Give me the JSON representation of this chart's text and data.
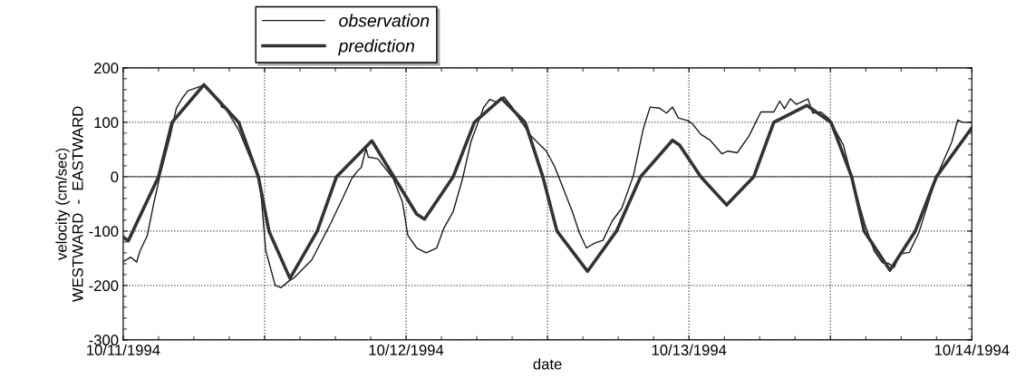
{
  "chart_data": {
    "type": "line",
    "xlabel": "date",
    "ylabel": "velocity (cm/sec)\nWESTWARD  -  EASTWARD",
    "xlim": [
      "1994-10-11T00:00",
      "1994-10-14T00:00"
    ],
    "ylim": [
      -300,
      200
    ],
    "xticks": [
      {
        "value": "1994-10-11",
        "label": "10/11/1994"
      },
      {
        "value": "1994-10-11T12:00",
        "label": null
      },
      {
        "value": "1994-10-12",
        "label": "10/12/1994"
      },
      {
        "value": "1994-10-12T12:00",
        "label": null
      },
      {
        "value": "1994-10-13",
        "label": "10/13/1994"
      },
      {
        "value": "1994-10-13T12:00",
        "label": null
      },
      {
        "value": "1994-10-14",
        "label": "10/14/1994"
      }
    ],
    "yticks": [
      -300,
      -200,
      -100,
      0,
      100,
      200
    ],
    "grid": true,
    "legend": "top left",
    "marker": "none",
    "ref_lines": [
      {
        "axis": "y",
        "value": 0,
        "color": "#555555",
        "line_style": "solid"
      }
    ],
    "series": [
      {
        "name": "observation",
        "color": "#1a1a1a",
        "line_style": "solid",
        "x": [
          "1994-10-11T00:00",
          "1994-10-11T00:39",
          "1994-10-11T01:09",
          "1994-10-11T01:24",
          "1994-10-11T02:03",
          "1994-10-11T02:34",
          "1994-10-11T03:06",
          "1994-10-11T04:00",
          "1994-10-11T04:30",
          "1994-10-11T05:00",
          "1994-10-11T05:30",
          "1994-10-11T06:48",
          "1994-10-11T08:06",
          "1994-10-11T08:21",
          "1994-10-11T08:42",
          "1994-10-11T09:48",
          "1994-10-11T11:36",
          "1994-10-11T12:06",
          "1994-10-11T12:54",
          "1994-10-11T13:24",
          "1994-10-11T14:03",
          "1994-10-11T14:30",
          "1994-10-11T16:00",
          "1994-10-11T17:36",
          "1994-10-11T18:42",
          "1994-10-11T19:24",
          "1994-10-11T19:54",
          "1994-10-11T20:12",
          "1994-10-11T20:36",
          "1994-10-11T20:48",
          "1994-10-11T21:36",
          "1994-10-11T22:54",
          "1994-10-11T23:42",
          "1994-10-12T00:09",
          "1994-10-12T00:54",
          "1994-10-12T01:42",
          "1994-10-12T02:36",
          "1994-10-12T03:12",
          "1994-10-12T04:00",
          "1994-10-12T04:48",
          "1994-10-12T05:30",
          "1994-10-12T06:36",
          "1994-10-12T07:06",
          "1994-10-12T07:48",
          "1994-10-12T08:18",
          "1994-10-12T09:00",
          "1994-10-12T09:12",
          "1994-10-12T10:36",
          "1994-10-12T11:54",
          "1994-10-12T12:36",
          "1994-10-12T13:24",
          "1994-10-12T14:06",
          "1994-10-12T14:42",
          "1994-10-12T15:18",
          "1994-10-12T16:00",
          "1994-10-12T16:42",
          "1994-10-12T17:30",
          "1994-10-12T18:18",
          "1994-10-12T19:18",
          "1994-10-12T20:06",
          "1994-10-12T20:42",
          "1994-10-12T21:30",
          "1994-10-12T22:06",
          "1994-10-12T22:36",
          "1994-10-12T23:06",
          "1994-10-12T23:54",
          "1994-10-13T00:18",
          "1994-10-13T01:00",
          "1994-10-13T01:48",
          "1994-10-13T02:48",
          "1994-10-13T03:18",
          "1994-10-13T04:06",
          "1994-10-13T05:06",
          "1994-10-13T06:06",
          "1994-10-13T07:12",
          "1994-10-13T07:42",
          "1994-10-13T08:06",
          "1994-10-13T08:36",
          "1994-10-13T09:06",
          "1994-10-13T10:06",
          "1994-10-13T10:30",
          "1994-10-13T11:12",
          "1994-10-13T11:54",
          "1994-10-13T13:06",
          "1994-10-13T14:06",
          "1994-10-13T14:54",
          "1994-10-13T15:42",
          "1994-10-13T16:24",
          "1994-10-13T16:54",
          "1994-10-13T17:24",
          "1994-10-13T17:54",
          "1994-10-13T18:42",
          "1994-10-13T19:30",
          "1994-10-13T21:00",
          "1994-10-13T22:18",
          "1994-10-13T22:48",
          "1994-10-13T23:12",
          "1994-10-14T00:00"
        ],
        "values": [
          -156,
          -148,
          -157,
          -138,
          -108,
          -52,
          0,
          75,
          125,
          144,
          158,
          168,
          142,
          128,
          125,
          86,
          -8,
          -136,
          -200,
          -204,
          -192,
          -186,
          -153,
          -86,
          -36,
          -3,
          11,
          17,
          52,
          36,
          33,
          -3,
          -47,
          -108,
          -131,
          -140,
          -131,
          -95,
          -64,
          -3,
          64,
          128,
          142,
          136,
          147,
          128,
          119,
          75,
          47,
          19,
          -25,
          -64,
          -103,
          -131,
          -122,
          -117,
          -81,
          -58,
          3,
          86,
          128,
          126,
          117,
          128,
          108,
          103,
          97,
          78,
          67,
          42,
          47,
          44,
          75,
          119,
          119,
          139,
          125,
          143,
          133,
          143,
          117,
          119,
          106,
          58,
          -25,
          -86,
          -136,
          -158,
          -159,
          -167,
          -142,
          -139,
          -103,
          0,
          64,
          104,
          100,
          100
        ]
      },
      {
        "name": "prediction",
        "color": "#333333",
        "line_style": "solid",
        "x": [
          "1994-10-11T00:00",
          "1994-10-11T00:26",
          "1994-10-11T03:00",
          "1994-10-11T04:09",
          "1994-10-11T06:51",
          "1994-10-11T09:48",
          "1994-10-11T11:28",
          "1994-10-11T12:22",
          "1994-10-11T14:09",
          "1994-10-11T16:28",
          "1994-10-11T18:06",
          "1994-10-11T21:06",
          "1994-10-12T00:54",
          "1994-10-12T01:34",
          "1994-10-12T04:00",
          "1994-10-12T05:48",
          "1994-10-12T08:06",
          "1994-10-12T10:06",
          "1994-10-12T11:36",
          "1994-10-12T12:48",
          "1994-10-12T15:24",
          "1994-10-12T17:51",
          "1994-10-12T19:54",
          "1994-10-12T22:36",
          "1994-10-12T23:12",
          "1994-10-13T01:00",
          "1994-10-13T03:12",
          "1994-10-13T05:30",
          "1994-10-13T07:12",
          "1994-10-13T10:00",
          "1994-10-13T12:03",
          "1994-10-13T13:48",
          "1994-10-13T14:52",
          "1994-10-13T17:03",
          "1994-10-13T19:12",
          "1994-10-13T21:00",
          "1994-10-14T00:00"
        ],
        "values": [
          -111,
          -118,
          0,
          100,
          169,
          100,
          0,
          -100,
          -187,
          -100,
          0,
          66,
          -69,
          -78,
          0,
          100,
          144,
          100,
          0,
          -100,
          -174,
          -100,
          0,
          67,
          58,
          0,
          -52,
          0,
          100,
          131,
          100,
          0,
          -100,
          -172,
          -100,
          0,
          90
        ]
      }
    ]
  }
}
